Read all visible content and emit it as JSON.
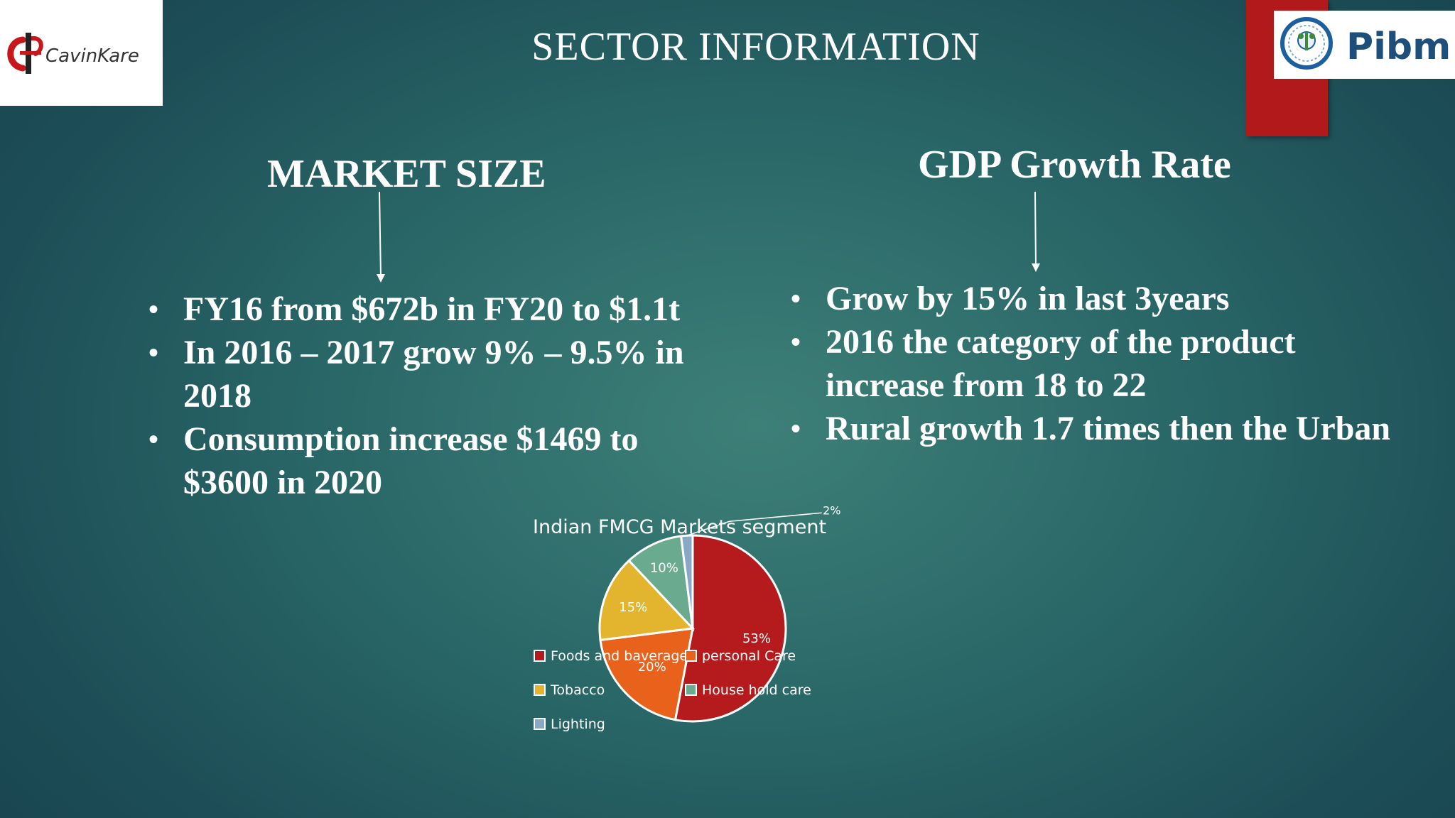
{
  "slide": {
    "title": "SECTOR INFORMATION"
  },
  "logos": {
    "left_text": "CavinKare",
    "right_text": "Pibm"
  },
  "market_size": {
    "heading": "MARKET SIZE",
    "bullets": [
      "FY16 from $672b in FY20 to $1.1t",
      " In 2016 – 2017 grow 9% – 9.5% in 2018",
      "Consumption increase $1469 to $3600 in 2020"
    ]
  },
  "gdp": {
    "heading": "GDP Growth Rate",
    "bullets": [
      "Grow by 15% in last 3years",
      "2016 the category of the product increase from 18 to  22",
      "Rural growth 1.7 times then the Urban"
    ]
  },
  "chart_data": {
    "type": "pie",
    "title": "Indian FMCG Markets segment",
    "categories": [
      "Foods and baverages",
      "personal Care",
      "Tobacco",
      "House hold care",
      "Lighting"
    ],
    "values": [
      53,
      20,
      15,
      10,
      2
    ],
    "labels": [
      "53%",
      "20%",
      "15%",
      "10%",
      "2%"
    ],
    "colors": [
      "#b51a1c",
      "#e8621c",
      "#e3b52e",
      "#6aab8f",
      "#89a8c4"
    ],
    "legend": "bottom-left"
  }
}
